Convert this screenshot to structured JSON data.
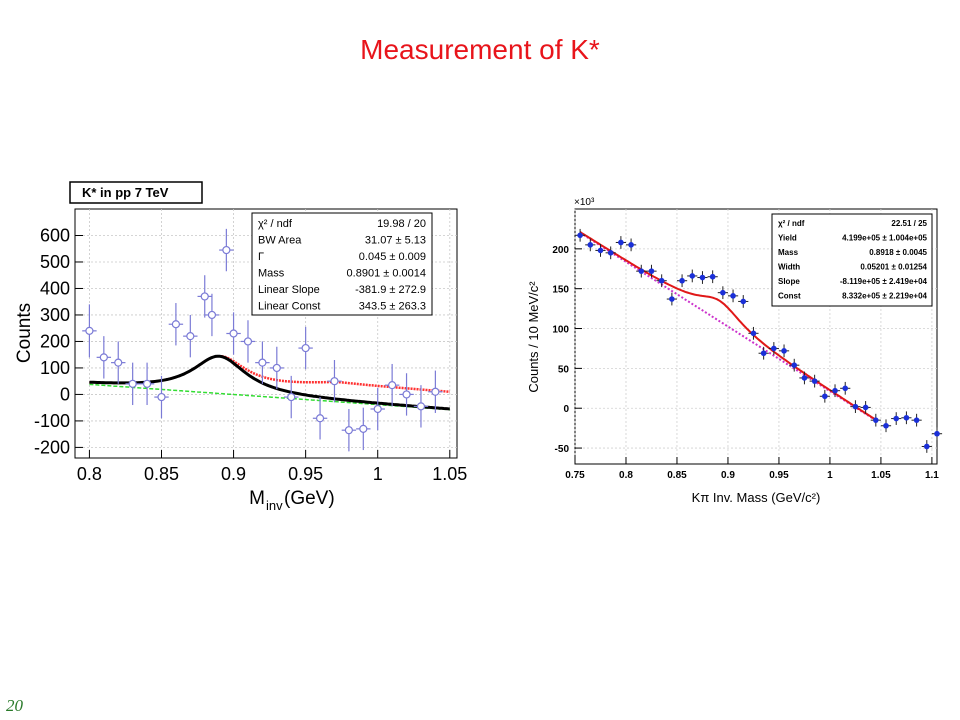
{
  "slide": {
    "title": "Measurement of K*",
    "page_number": "20"
  },
  "colors": {
    "title": "#e8141b",
    "page_number": "#2a7a2a",
    "left_points": "#7b7bd6",
    "left_fit": "#000000",
    "left_red_fit": "#ff3030",
    "left_bg": "#33dd33",
    "right_points": "#1a2fd8",
    "right_fit": "#e01818",
    "right_bg": "#cc33cc"
  },
  "chart_data": [
    {
      "type": "scatter",
      "title": "K* in pp 7 TeV",
      "xlabel": "M",
      "xlabel_sub": "inv",
      "xlabel_unit": " (GeV)",
      "ylabel": "Counts",
      "xlim": [
        0.79,
        1.055
      ],
      "ylim": [
        -240,
        700
      ],
      "xticks": [
        0.8,
        0.85,
        0.9,
        0.95,
        1,
        1.05
      ],
      "xtick_labels": [
        "0.8",
        "0.85",
        "0.9",
        "0.95",
        "1",
        "1.05"
      ],
      "yticks": [
        -200,
        -100,
        0,
        100,
        200,
        300,
        400,
        500,
        600
      ],
      "ytick_labels": [
        "-200",
        "-100",
        "0",
        "100",
        "200",
        "300",
        "400",
        "500",
        "600"
      ],
      "points": {
        "x": [
          0.8,
          0.81,
          0.82,
          0.83,
          0.84,
          0.85,
          0.86,
          0.87,
          0.88,
          0.885,
          0.895,
          0.9,
          0.91,
          0.92,
          0.93,
          0.94,
          0.95,
          0.96,
          0.97,
          0.98,
          0.99,
          1.0,
          1.01,
          1.02,
          1.03,
          1.04
        ],
        "y": [
          240,
          140,
          120,
          40,
          40,
          -10,
          265,
          220,
          370,
          300,
          545,
          230,
          200,
          120,
          100,
          -10,
          175,
          -90,
          50,
          -135,
          -130,
          -55,
          35,
          0,
          -45,
          10
        ],
        "yerr": [
          100,
          80,
          80,
          80,
          80,
          80,
          80,
          80,
          80,
          80,
          80,
          80,
          80,
          80,
          80,
          80,
          80,
          80,
          80,
          80,
          80,
          80,
          80,
          80,
          80,
          80
        ],
        "xerr": 0.005
      },
      "fit": {
        "bw_area": 31.07,
        "gamma": 0.045,
        "mass": 0.8901,
        "linear_slope": -381.9,
        "linear_const": 343.5
      },
      "stats": [
        {
          "label": "χ² / ndf",
          "value": "19.98 / 20"
        },
        {
          "label": "BW Area",
          "value": "31.07 ± 5.13"
        },
        {
          "label": "Γ",
          "value": "0.045 ± 0.009"
        },
        {
          "label": "Mass",
          "value": "0.8901 ± 0.0014"
        },
        {
          "label": "Linear Slope",
          "value": "-381.9 ± 272.9"
        },
        {
          "label": "Linear Const",
          "value": "343.5 ± 263.3"
        }
      ]
    },
    {
      "type": "scatter",
      "xlabel": "Kπ Inv. Mass (GeV/c²)",
      "ylabel": "Counts / 10 MeV/c²",
      "y_multiplier": "×10³",
      "xlim": [
        0.75,
        1.105
      ],
      "ylim": [
        -70,
        250
      ],
      "xticks": [
        0.75,
        0.8,
        0.85,
        0.9,
        0.95,
        1,
        1.05,
        1.1
      ],
      "xtick_labels": [
        "0.75",
        "0.8",
        "0.85",
        "0.9",
        "0.95",
        "1",
        "1.05",
        "1.1"
      ],
      "yticks": [
        -50,
        0,
        50,
        100,
        150,
        200
      ],
      "ytick_labels": [
        "-50",
        "0",
        "50",
        "100",
        "150",
        "200"
      ],
      "points": {
        "x": [
          0.755,
          0.765,
          0.775,
          0.785,
          0.795,
          0.805,
          0.815,
          0.825,
          0.835,
          0.845,
          0.855,
          0.865,
          0.875,
          0.885,
          0.895,
          0.905,
          0.915,
          0.925,
          0.935,
          0.945,
          0.955,
          0.965,
          0.975,
          0.985,
          0.995,
          1.005,
          1.015,
          1.025,
          1.035,
          1.045,
          1.055,
          1.065,
          1.075,
          1.085,
          1.095,
          1.105
        ],
        "y": [
          217,
          205,
          198,
          195,
          208,
          205,
          172,
          172,
          160,
          137,
          160,
          166,
          164,
          165,
          145,
          141,
          134,
          94,
          69,
          75,
          72,
          54,
          38,
          34,
          15,
          22,
          25,
          2,
          1,
          -15,
          -22,
          -13,
          -12,
          -15,
          -48,
          -32
        ],
        "yerr": 8
      },
      "fit": {
        "yield": 419900,
        "mass": 0.8918,
        "width": 0.05201,
        "slope": -811900,
        "const": 833200
      },
      "stats": [
        {
          "label": "χ² / ndf",
          "value": "22.51 / 25"
        },
        {
          "label": "Yield",
          "value": "4.199e+05 ± 1.004e+05"
        },
        {
          "label": "Mass",
          "value": "0.8918 ± 0.0045"
        },
        {
          "label": "Width",
          "value": "0.05201 ± 0.01254"
        },
        {
          "label": "Slope",
          "value": "-8.119e+05 ± 2.419e+04"
        },
        {
          "label": "Const",
          "value": "8.332e+05 ± 2.219e+04"
        }
      ]
    }
  ]
}
